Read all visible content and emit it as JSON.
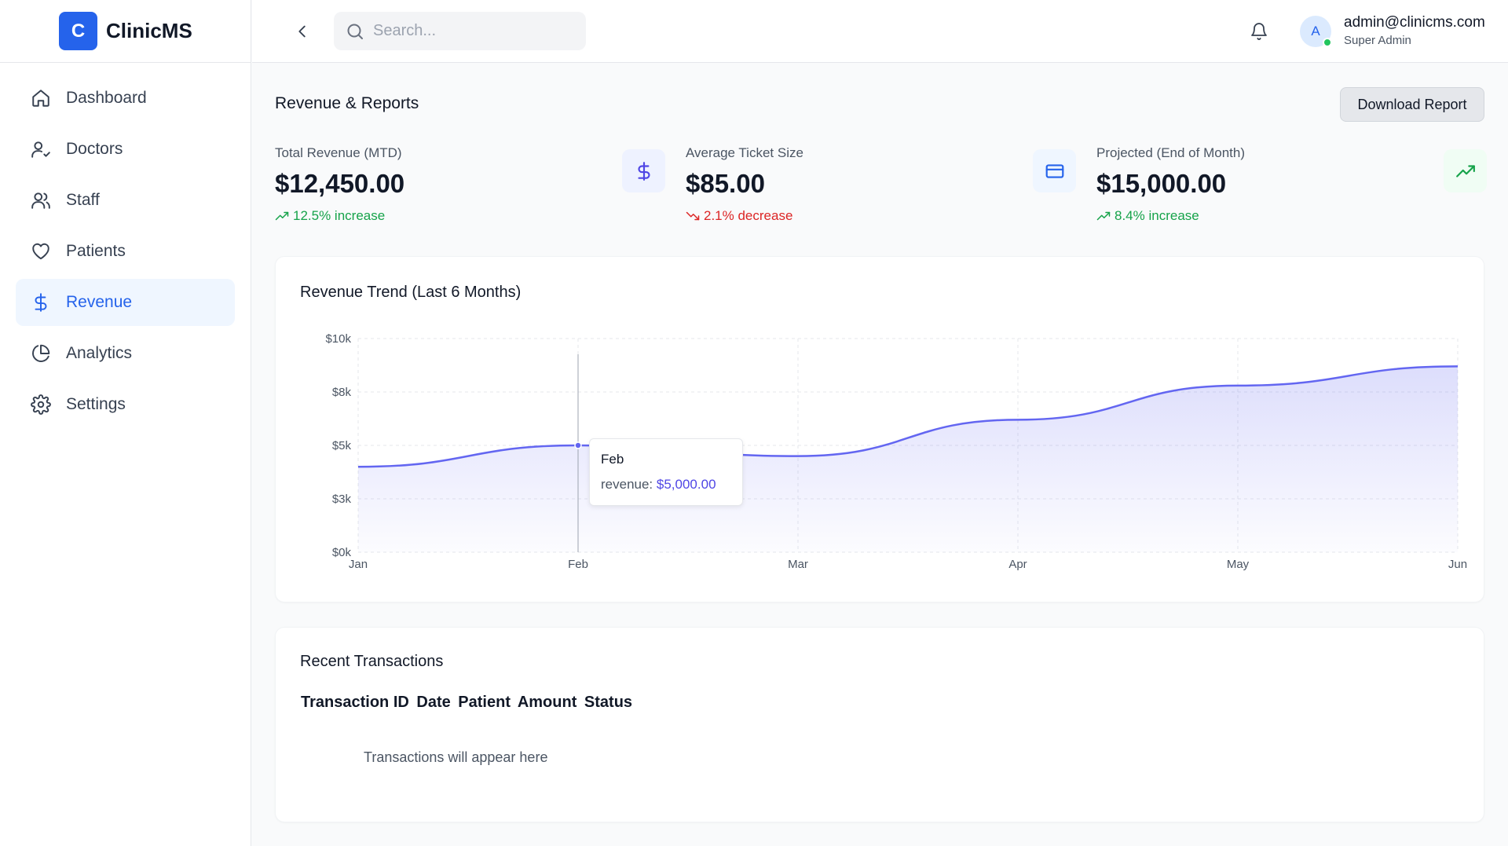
{
  "brand": {
    "logo_letter": "C",
    "name": "ClinicMS",
    "color": "#2563eb"
  },
  "sidebar": {
    "items": [
      {
        "label": "Dashboard",
        "icon": "home-icon",
        "active": false
      },
      {
        "label": "Doctors",
        "icon": "user-check-icon",
        "active": false
      },
      {
        "label": "Staff",
        "icon": "users-icon",
        "active": false
      },
      {
        "label": "Patients",
        "icon": "heart-icon",
        "active": false
      },
      {
        "label": "Revenue",
        "icon": "dollar-icon",
        "active": true
      },
      {
        "label": "Analytics",
        "icon": "pie-chart-icon",
        "active": false
      },
      {
        "label": "Settings",
        "icon": "gear-icon",
        "active": false
      }
    ]
  },
  "header": {
    "back_icon": "chevron-left-icon",
    "search_placeholder": "Search...",
    "notifications_icon": "bell-icon",
    "user": {
      "avatar_letter": "A",
      "email": "admin@clinicms.com",
      "role": "Super Admin",
      "online": true
    }
  },
  "page": {
    "title": "Revenue & Reports",
    "download_label": "Download Report"
  },
  "stats": [
    {
      "label": "Total Revenue (MTD)",
      "value": "$12,450.00",
      "change": "12.5% increase",
      "direction": "up",
      "icon": "dollar-icon",
      "icon_color": "#4f46e5",
      "icon_bg": "#eef2ff"
    },
    {
      "label": "Average Ticket Size",
      "value": "$85.00",
      "change": "2.1% decrease",
      "direction": "down",
      "icon": "credit-card-icon",
      "icon_color": "#2563eb",
      "icon_bg": "#eff6ff"
    },
    {
      "label": "Projected (End of Month)",
      "value": "$15,000.00",
      "change": "8.4% increase",
      "direction": "up",
      "icon": "trending-up-icon",
      "icon_color": "#16a34a",
      "icon_bg": "#f0fdf4"
    }
  ],
  "revenue_chart": {
    "title": "Revenue Trend (Last 6 Months)",
    "tooltip": {
      "category": "Feb",
      "series_label": "revenue: ",
      "value_text": "$5,000.00"
    }
  },
  "chart_data": {
    "type": "area",
    "title": "Revenue Trend (Last 6 Months)",
    "categories": [
      "Jan",
      "Feb",
      "Mar",
      "Apr",
      "May",
      "Jun"
    ],
    "series": [
      {
        "name": "revenue",
        "values": [
          4000,
          5000,
          4500,
          6200,
          7800,
          8700
        ],
        "color": "#6366f1"
      }
    ],
    "yticks": [
      "$0k",
      "$3k",
      "$5k",
      "$8k",
      "$10k"
    ],
    "ytick_values": [
      0,
      2500,
      5000,
      7500,
      10000
    ],
    "ylim": [
      0,
      10000
    ],
    "grid": true,
    "highlighted_category": "Feb"
  },
  "transactions": {
    "title": "Recent Transactions",
    "columns": [
      "Transaction ID",
      "Date",
      "Patient",
      "Amount",
      "Status"
    ],
    "empty_message": "Transactions will appear here"
  }
}
